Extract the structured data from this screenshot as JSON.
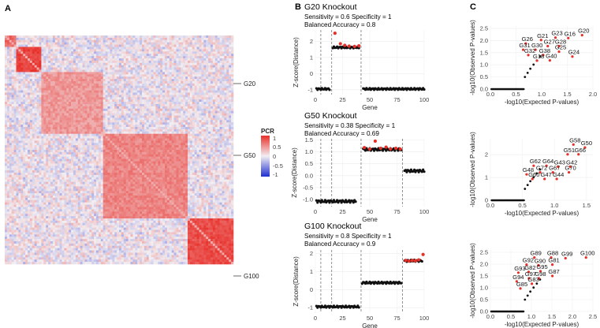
{
  "panels": {
    "a": "A",
    "b": "B",
    "c": "C"
  },
  "heatmap": {
    "group_labels": [
      "G20",
      "G50",
      "G100"
    ],
    "legend": {
      "title": "PCR",
      "ticks": [
        "1",
        "0.5",
        "0",
        "-0.5",
        "-1"
      ]
    },
    "colors": {
      "high": "#e8302a",
      "mid": "#f2eef2",
      "low": "#1f2fd0"
    }
  },
  "chart_data": [
    {
      "type": "scatter",
      "title": "G20 Knockout",
      "stats": [
        "Sensitivity = 0.6 Specificity = 1",
        "Balanced Accuracy = 0.8"
      ],
      "xlabel": "Gene",
      "ylabel": "Z-score(Distance)",
      "xlim": [
        0,
        100
      ],
      "ylim": [
        -1.3,
        2.7
      ],
      "xticks": [
        "0",
        "25",
        "50",
        "75",
        "100"
      ],
      "yticks": [
        "-1",
        "0",
        "1",
        "2"
      ],
      "vlines": [
        5,
        15,
        42
      ],
      "segments": [
        {
          "from": 1,
          "to": 13,
          "y": -0.95
        },
        {
          "from": 16,
          "to": 40,
          "y": 1.62
        },
        {
          "from": 44,
          "to": 100,
          "y": -0.95
        }
      ],
      "highlighted": [
        {
          "x": 18,
          "y": 2.5
        },
        {
          "x": 23,
          "y": 1.85
        },
        {
          "x": 27,
          "y": 1.75
        },
        {
          "x": 31,
          "y": 1.7
        },
        {
          "x": 36,
          "y": 1.68
        },
        {
          "x": 40,
          "y": 1.72
        }
      ]
    },
    {
      "type": "scatter",
      "title": "G50 Knockout",
      "stats": [
        "Sensitivity = 0.38 Specificity = 1",
        "Balanced Accuracy = 0.69"
      ],
      "xlabel": "Gene",
      "ylabel": "Z-score(Distance)",
      "xlim": [
        0,
        100
      ],
      "ylim": [
        -1.3,
        1.55
      ],
      "xticks": [
        "0",
        "25",
        "50",
        "75",
        "100"
      ],
      "yticks": [
        "-1.0",
        "-0.5",
        "0.0",
        "0.5",
        "1.0",
        "1.5"
      ],
      "vlines": [
        5,
        15,
        42,
        80
      ],
      "segments": [
        {
          "from": 1,
          "to": 37,
          "y": -1.08
        },
        {
          "from": 44,
          "to": 79,
          "y": 1.1
        },
        {
          "from": 82,
          "to": 100,
          "y": 0.2
        }
      ],
      "highlighted": [
        {
          "x": 45,
          "y": 1.18
        },
        {
          "x": 50,
          "y": 1.12
        },
        {
          "x": 55,
          "y": 1.45
        },
        {
          "x": 60,
          "y": 1.15
        },
        {
          "x": 65,
          "y": 1.2
        },
        {
          "x": 69,
          "y": 1.12
        },
        {
          "x": 74,
          "y": 1.15
        },
        {
          "x": 78,
          "y": 1.12
        }
      ]
    },
    {
      "type": "scatter",
      "title": "G100 Knockout",
      "stats": [
        "Sensitivity = 0.8 Specificity = 1",
        "Balanced Accuracy = 0.9"
      ],
      "xlabel": "Gene",
      "ylabel": "Z-score(Distance)",
      "xlim": [
        0,
        100
      ],
      "ylim": [
        -1.3,
        2.2
      ],
      "xticks": [
        "0",
        "25",
        "50",
        "75",
        "100"
      ],
      "yticks": [
        "-1",
        "0",
        "1",
        "2"
      ],
      "vlines": [
        5,
        15,
        42,
        80
      ],
      "segments": [
        {
          "from": 1,
          "to": 40,
          "y": -0.95
        },
        {
          "from": 43,
          "to": 79,
          "y": 0.38
        },
        {
          "from": 82,
          "to": 98,
          "y": 1.6
        }
      ],
      "highlighted": [
        {
          "x": 83,
          "y": 1.62
        },
        {
          "x": 86,
          "y": 1.58
        },
        {
          "x": 89,
          "y": 1.62
        },
        {
          "x": 92,
          "y": 1.6
        },
        {
          "x": 95,
          "y": 1.65
        },
        {
          "x": 99,
          "y": 1.95
        }
      ]
    },
    {
      "type": "scatter",
      "title": "",
      "xlabel": "-log10(Expected P-values)",
      "ylabel": "-log10(Observed P-values)",
      "xlim": [
        0,
        2.0
      ],
      "ylim": [
        0,
        2.6
      ],
      "xticks": [
        "0.0",
        "0.5",
        "1.0",
        "1.5",
        "2.0"
      ],
      "yticks": [
        "0.0",
        "0.5",
        "1.0",
        "1.5",
        "2.0",
        "2.5"
      ],
      "labels": [
        {
          "t": "G16",
          "x": 1.55,
          "y": 2.2
        },
        {
          "t": "G20",
          "x": 1.82,
          "y": 2.32
        },
        {
          "t": "G23",
          "x": 1.3,
          "y": 2.22
        },
        {
          "t": "G21",
          "x": 1.02,
          "y": 2.12
        },
        {
          "t": "G26",
          "x": 0.72,
          "y": 1.98
        },
        {
          "t": "G27",
          "x": 1.15,
          "y": 1.87
        },
        {
          "t": "G28",
          "x": 1.37,
          "y": 1.87
        },
        {
          "t": "G31",
          "x": 0.67,
          "y": 1.72
        },
        {
          "t": "G30",
          "x": 0.91,
          "y": 1.72
        },
        {
          "t": "G25",
          "x": 1.37,
          "y": 1.64
        },
        {
          "t": "G32",
          "x": 0.77,
          "y": 1.5
        },
        {
          "t": "G38",
          "x": 1.06,
          "y": 1.5
        },
        {
          "t": "G24",
          "x": 1.63,
          "y": 1.44
        },
        {
          "t": "G18",
          "x": 0.94,
          "y": 1.27
        },
        {
          "t": "G40",
          "x": 1.19,
          "y": 1.28
        }
      ]
    },
    {
      "type": "scatter",
      "title": "",
      "xlabel": "-log10(Expected P-values)",
      "ylabel": "-log10(Observed P-values)",
      "xlim": [
        0,
        1.6
      ],
      "ylim": [
        0,
        2.7
      ],
      "xticks": [
        "0.0",
        "0.5",
        "1.0",
        "1.5"
      ],
      "yticks": [
        "0",
        "1",
        "2"
      ],
      "labels": [
        {
          "t": "G58",
          "x": 1.32,
          "y": 2.55
        },
        {
          "t": "G50",
          "x": 1.5,
          "y": 2.42
        },
        {
          "t": "G51",
          "x": 1.23,
          "y": 2.12
        },
        {
          "t": "G66",
          "x": 1.4,
          "y": 2.12
        },
        {
          "t": "G62",
          "x": 0.7,
          "y": 1.62
        },
        {
          "t": "G64",
          "x": 0.9,
          "y": 1.62
        },
        {
          "t": "G43",
          "x": 1.08,
          "y": 1.58
        },
        {
          "t": "G42",
          "x": 1.27,
          "y": 1.58
        },
        {
          "t": "G72",
          "x": 0.8,
          "y": 1.33
        },
        {
          "t": "G67",
          "x": 1.0,
          "y": 1.33
        },
        {
          "t": "G70",
          "x": 1.25,
          "y": 1.33
        },
        {
          "t": "G48",
          "x": 0.59,
          "y": 1.24
        },
        {
          "t": "G60",
          "x": 0.68,
          "y": 1.04
        },
        {
          "t": "G47",
          "x": 0.87,
          "y": 1.04
        },
        {
          "t": "G44",
          "x": 1.06,
          "y": 1.04
        }
      ]
    },
    {
      "type": "scatter",
      "title": "",
      "xlabel": "-log10(Expected P-values)",
      "ylabel": "-log10(Observed P-values)",
      "xlim": [
        0,
        2.5
      ],
      "ylim": [
        0,
        2.6
      ],
      "xticks": [
        "0.0",
        "0.5",
        "1.0",
        "1.5",
        "2.0",
        "2.5"
      ],
      "yticks": [
        "0.0",
        "0.5",
        "1.0",
        "1.5",
        "2.0",
        "2.5"
      ],
      "labels": [
        {
          "t": "G100",
          "x": 2.37,
          "y": 2.38
        },
        {
          "t": "G99",
          "x": 1.87,
          "y": 2.35
        },
        {
          "t": "G88",
          "x": 1.52,
          "y": 2.38
        },
        {
          "t": "G89",
          "x": 1.11,
          "y": 2.38
        },
        {
          "t": "G92",
          "x": 0.92,
          "y": 2.08
        },
        {
          "t": "G90",
          "x": 1.21,
          "y": 2.05
        },
        {
          "t": "G81",
          "x": 1.55,
          "y": 2.08
        },
        {
          "t": "G93",
          "x": 0.72,
          "y": 1.74
        },
        {
          "t": "G82",
          "x": 0.97,
          "y": 1.77
        },
        {
          "t": "G95",
          "x": 1.26,
          "y": 1.8
        },
        {
          "t": "G97",
          "x": 0.98,
          "y": 1.5
        },
        {
          "t": "G98",
          "x": 1.22,
          "y": 1.5
        },
        {
          "t": "G87",
          "x": 1.55,
          "y": 1.6
        },
        {
          "t": "G94",
          "x": 0.68,
          "y": 1.37
        },
        {
          "t": "G83",
          "x": 1.05,
          "y": 1.27
        },
        {
          "t": "G85",
          "x": 0.77,
          "y": 1.07
        }
      ]
    }
  ]
}
